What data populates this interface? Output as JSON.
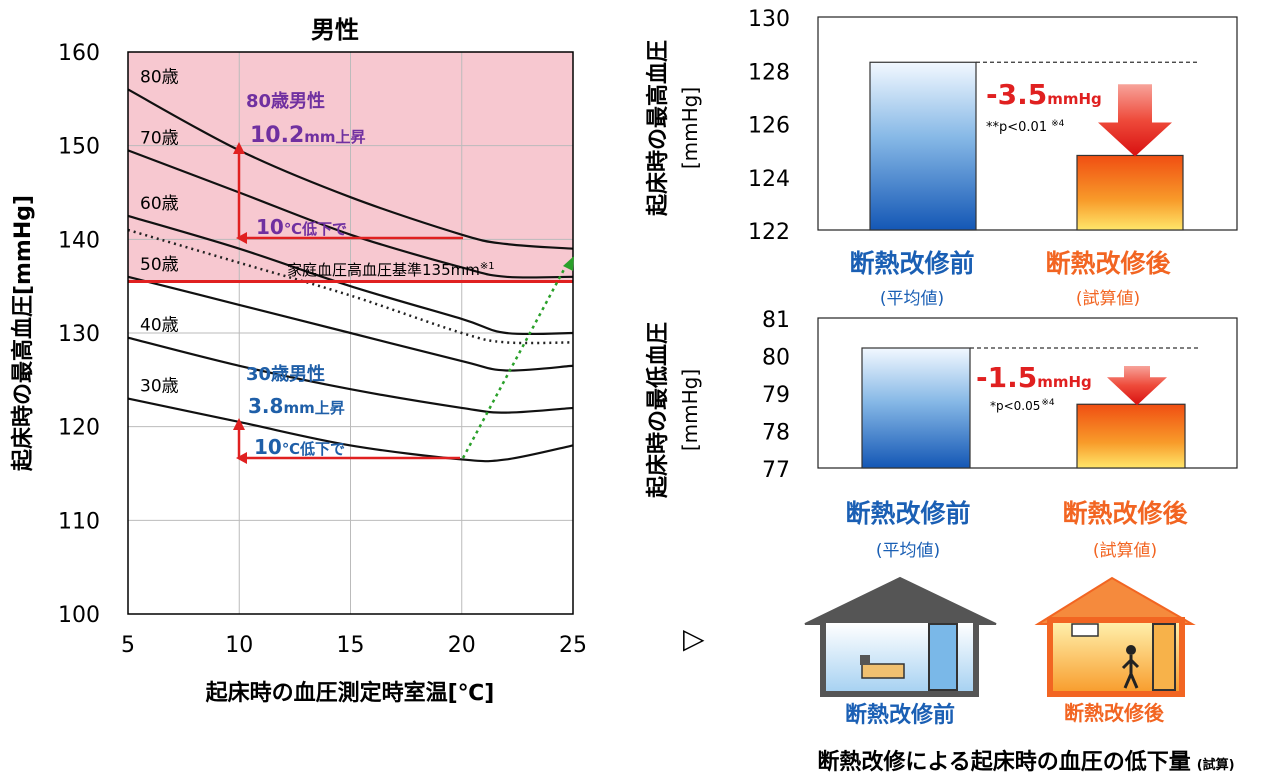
{
  "left_chart": {
    "title": "男性",
    "ylabel": "起床時の最高血圧[mmHg]",
    "xlabel": "起床時の血圧測定時室温[℃]",
    "xticks": [
      5,
      10,
      15,
      20,
      25
    ],
    "yticks": [
      100,
      110,
      120,
      130,
      140,
      150,
      160
    ],
    "xlim": [
      5,
      25
    ],
    "ylim": [
      100,
      160
    ],
    "reference_label": "家庭血圧高血圧基準135mm",
    "reference_note": "※1",
    "callout_80": {
      "line1_a": "80歳",
      "line1_b": "男性",
      "line2_a": "10.2",
      "line2_b": "mm上昇",
      "drop_a": "10",
      "drop_b": "℃低下で"
    },
    "callout_30": {
      "line1_a": "30歳",
      "line1_b": "男性",
      "line2_a": "3.8",
      "line2_b": "mm上昇",
      "drop_a": "10",
      "drop_b": "℃低下で"
    },
    "colors": {
      "pink_zone": "#f7c8d0",
      "reference": "#e02020",
      "callout_80": "#7030a0",
      "callout_30": "#1f5fa8",
      "arrow": "#e02020",
      "green": "#2aa02a"
    }
  },
  "chart_data": [
    {
      "type": "line",
      "title": "男性",
      "xlabel": "起床時の血圧測定時室温[℃]",
      "ylabel": "起床時の最高血圧[mmHg]",
      "xlim": [
        5,
        25
      ],
      "ylim": [
        100,
        160
      ],
      "grid": true,
      "x": [
        5,
        10,
        15,
        20,
        22,
        25
      ],
      "series": [
        {
          "name": "80歳",
          "values": [
            156,
            149.5,
            144.5,
            140.5,
            139.5,
            139
          ]
        },
        {
          "name": "70歳",
          "values": [
            149.5,
            145,
            140.5,
            137,
            136,
            136
          ]
        },
        {
          "name": "60歳",
          "values": [
            142.5,
            139,
            135,
            131.5,
            130,
            130
          ]
        },
        {
          "name": "",
          "values": [
            141,
            137.5,
            134,
            130,
            129,
            129
          ],
          "style": "dotted"
        },
        {
          "name": "50歳",
          "values": [
            136,
            133,
            130,
            127,
            126,
            126.5
          ]
        },
        {
          "name": "40歳",
          "values": [
            129.5,
            126.5,
            124,
            122,
            121.5,
            122
          ]
        },
        {
          "name": "30歳",
          "values": [
            123,
            120.5,
            118,
            116.5,
            116.5,
            118
          ]
        }
      ],
      "reference_line": {
        "y": 135.5,
        "label": "家庭血圧高血圧基準135mm"
      }
    },
    {
      "type": "bar",
      "ylabel": "起床時の最高血圧 [mmHg]",
      "ylim": [
        122,
        130
      ],
      "yticks": [
        122,
        124,
        126,
        128,
        130
      ],
      "categories": [
        "断熱改修前",
        "断熱改修後"
      ],
      "values": [
        128.3,
        124.8
      ],
      "sublabels": [
        "(平均値)",
        "(試算値)"
      ],
      "diff_value": "-3.5",
      "diff_unit": "mmHg",
      "significance": "**p<0.01",
      "significance_note": "※4"
    },
    {
      "type": "bar",
      "ylabel": "起床時の最低血圧 [mmHg]",
      "ylim": [
        77,
        81
      ],
      "yticks": [
        77,
        78,
        79,
        80,
        81
      ],
      "categories": [
        "断熱改修前",
        "断熱改修後"
      ],
      "values": [
        80.2,
        78.7
      ],
      "sublabels": [
        "(平均値)",
        "(試算値)"
      ],
      "diff_value": "-1.5",
      "diff_unit": "mmHg",
      "significance": "*p<0.05",
      "significance_note": "※4"
    }
  ],
  "right_panel": {
    "top_ylabel_1": "起床時の最高血圧",
    "top_ylabel_2": "[mmHg]",
    "bottom_ylabel_1": "起床時の最低血圧",
    "bottom_ylabel_2": "[mmHg]",
    "before_label": "断熱改修前",
    "after_label": "断熱改修後",
    "before_sub": "(平均値)",
    "after_sub": "(試算値)",
    "arrow_glyph": "▷",
    "house_before_label": "断熱改修前",
    "house_after_label": "断熱改修後",
    "footer_main": "断熱改修による起床時の血圧の低下量",
    "footer_note": "(試算)",
    "colors": {
      "blue": "#1a5fb4",
      "orange": "#f26522",
      "red": "#e02020"
    }
  }
}
